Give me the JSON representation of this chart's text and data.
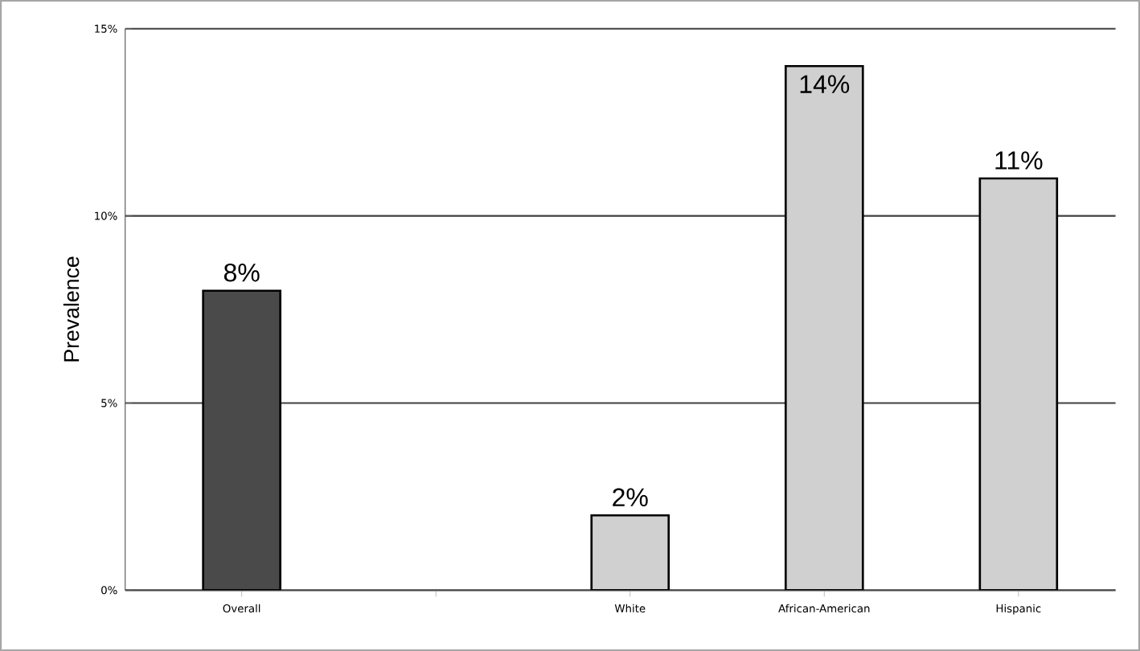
{
  "chart_data": {
    "type": "bar",
    "ylabel": "Prevalence",
    "categories": [
      "Overall",
      null,
      "White",
      "African-American",
      "Hispanic"
    ],
    "values": [
      8,
      null,
      2,
      14,
      11
    ],
    "colors": [
      "#4a4a4a",
      null,
      "#d0d0d0",
      "#d0d0d0",
      "#d0d0d0"
    ],
    "value_labels": [
      "8%",
      null,
      "2%",
      "14%",
      "11%"
    ],
    "ylim": [
      0,
      15
    ],
    "yticks": [
      {
        "value": 0,
        "label": "0%"
      },
      {
        "value": 5,
        "label": "5%"
      },
      {
        "value": 10,
        "label": "10%"
      },
      {
        "value": 15,
        "label": "15%"
      }
    ],
    "grid": "y"
  }
}
